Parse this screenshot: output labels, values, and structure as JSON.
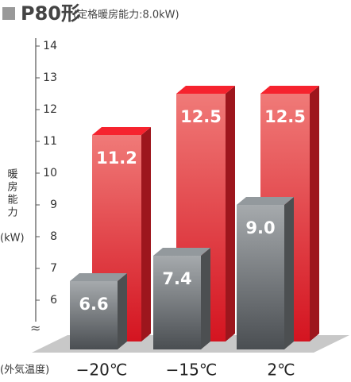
{
  "chart_data": {
    "type": "bar3d",
    "title": "P80形",
    "subtitle": "(定格暖房能力:8.0kW)",
    "y_label": "暖房能力",
    "y_unit": "(kW)",
    "x_label": "(外気温度)",
    "categories": [
      "−20℃",
      "−15℃",
      "2℃"
    ],
    "series": [
      {
        "color": "#e0202a",
        "values": [
          11.2,
          12.5,
          12.5
        ],
        "value_labels": [
          "11.2",
          "12.5",
          "12.5"
        ]
      },
      {
        "color": "#6d7174",
        "values": [
          6.6,
          7.4,
          9.0
        ],
        "value_labels": [
          "6.6",
          "7.4",
          "9.0"
        ]
      }
    ],
    "ylim": [
      5,
      14.2
    ],
    "yticks": [
      6,
      7,
      8,
      9,
      10,
      11,
      12,
      13,
      14
    ]
  }
}
